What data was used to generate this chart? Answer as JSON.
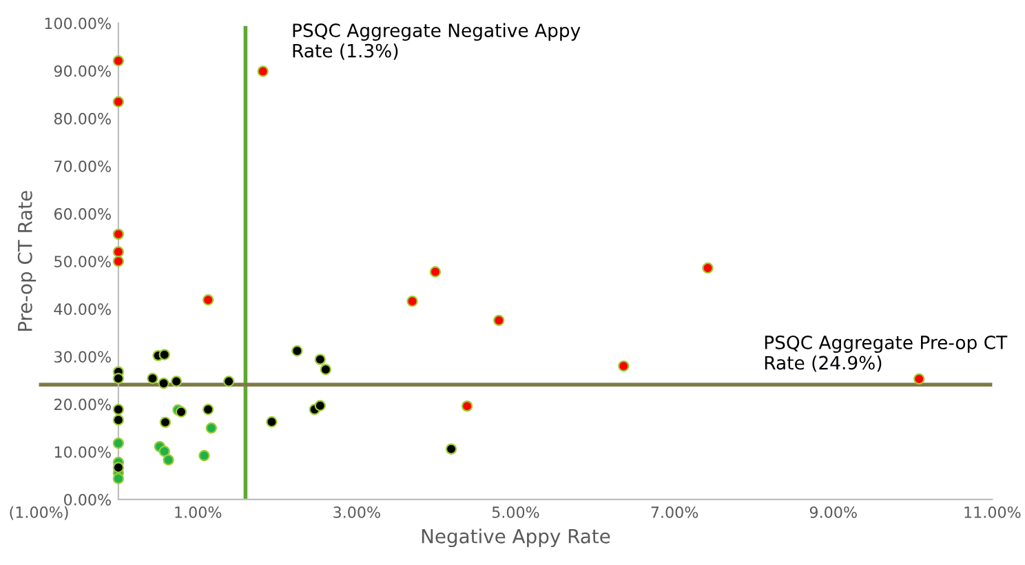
{
  "chart_data": {
    "type": "scatter",
    "xlabel": "Negative Appy Rate",
    "ylabel": "Pre-op CT Rate",
    "xlim": [
      -1,
      11
    ],
    "xticks": [
      {
        "value": -1,
        "label": "(1.00%)"
      },
      {
        "value": 1,
        "label": "1.00%"
      },
      {
        "value": 3,
        "label": "3.00%"
      },
      {
        "value": 5,
        "label": "5.00%"
      },
      {
        "value": 7,
        "label": "7.00%"
      },
      {
        "value": 9,
        "label": "9.00%"
      },
      {
        "value": 11,
        "label": "11.00%"
      }
    ],
    "ylim": [
      0,
      100
    ],
    "yticks": [
      {
        "value": 0,
        "label": "0.00%"
      },
      {
        "value": 10,
        "label": "10.00%"
      },
      {
        "value": 20,
        "label": "20.00%"
      },
      {
        "value": 30,
        "label": "30.00%"
      },
      {
        "value": 40,
        "label": "40.00%"
      },
      {
        "value": 50,
        "label": "50.00%"
      },
      {
        "value": 60,
        "label": "60.00%"
      },
      {
        "value": 70,
        "label": "70.00%"
      },
      {
        "value": 80,
        "label": "80.00%"
      },
      {
        "value": 90,
        "label": "90.00%"
      },
      {
        "value": 100,
        "label": "100.00%"
      }
    ],
    "grid": false,
    "marker": "circle",
    "series": [
      {
        "color": "#ff0000",
        "x": [
          0,
          0,
          1.82,
          0,
          0,
          0,
          1.13,
          3.99,
          3.7,
          4.79,
          6.36,
          4.39,
          7.42,
          10.08
        ],
        "values": [
          92.1,
          83.5,
          89.9,
          55.7,
          52.0,
          50.0,
          41.9,
          47.8,
          41.6,
          37.6,
          28.0,
          19.6,
          48.6,
          25.3
        ]
      },
      {
        "color": "#1fb24a",
        "x": [
          0,
          0,
          0,
          0,
          0.75,
          0.52,
          0.58,
          0.63,
          1.08,
          1.17
        ],
        "values": [
          11.8,
          7.8,
          5.6,
          4.4,
          18.8,
          11.1,
          10.1,
          8.3,
          9.2,
          15.0
        ]
      },
      {
        "color": "#000000",
        "x": [
          0,
          0,
          0,
          0,
          0,
          0.5,
          0.58,
          0.43,
          0.57,
          0.73,
          1.39,
          0.59,
          0.79,
          1.13,
          1.93,
          2.25,
          2.54,
          2.61,
          2.47,
          2.54,
          4.19
        ],
        "values": [
          26.8,
          25.4,
          18.9,
          16.7,
          6.7,
          30.2,
          30.4,
          25.4,
          24.4,
          24.8,
          24.8,
          16.2,
          18.4,
          18.9,
          16.3,
          31.2,
          29.4,
          27.3,
          18.9,
          19.7,
          10.6
        ]
      }
    ],
    "ref_lines": [
      {
        "axis": "x",
        "value": 1.6,
        "label": "PSQC Aggregate Negative Appy\nRate (1.3%)",
        "color": "#5fa832"
      },
      {
        "axis": "y",
        "value": 24.1,
        "label": "PSQC Aggregate Pre-op CT\nRate (24.9%)",
        "color": "#7f7a45"
      }
    ]
  }
}
